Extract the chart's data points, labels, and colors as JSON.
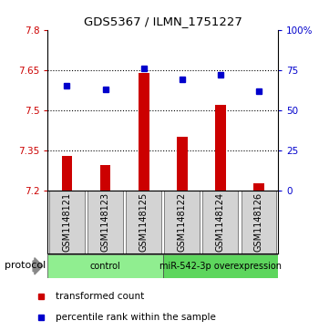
{
  "title": "GDS5367 / ILMN_1751227",
  "samples": [
    "GSM1148121",
    "GSM1148123",
    "GSM1148125",
    "GSM1148122",
    "GSM1148124",
    "GSM1148126"
  ],
  "bar_values": [
    7.33,
    7.295,
    7.638,
    7.4,
    7.52,
    7.225
  ],
  "bar_baseline": 7.2,
  "percentile_values": [
    65,
    63,
    76,
    69,
    72,
    62
  ],
  "ylim_left": [
    7.2,
    7.8
  ],
  "ylim_right": [
    0,
    100
  ],
  "yticks_left": [
    7.2,
    7.35,
    7.5,
    7.65,
    7.8
  ],
  "yticks_right": [
    0,
    25,
    50,
    75,
    100
  ],
  "ytick_labels_right": [
    "0",
    "25",
    "50",
    "75",
    "100%"
  ],
  "bar_color": "#CC0000",
  "square_color": "#0000CC",
  "groups": [
    {
      "label": "control",
      "indices": [
        0,
        1,
        2
      ],
      "color": "#90EE90"
    },
    {
      "label": "miR-542-3p overexpression",
      "indices": [
        3,
        4,
        5
      ],
      "color": "#5DD65D"
    }
  ],
  "protocol_label": "protocol",
  "legend_bar_label": "transformed count",
  "legend_square_label": "percentile rank within the sample",
  "background_color": "#ffffff",
  "sample_box_color": "#d3d3d3",
  "dotted_lines": [
    7.35,
    7.5,
    7.65
  ]
}
